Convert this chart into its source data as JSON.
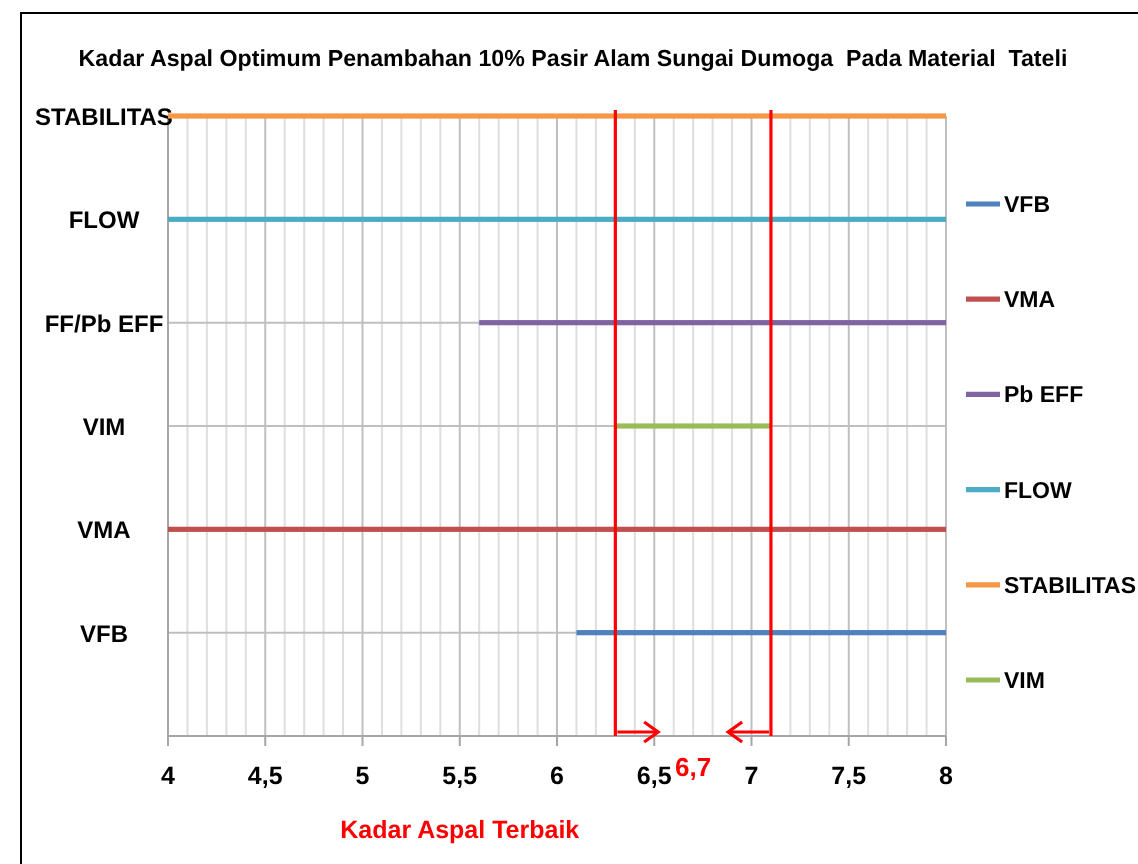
{
  "chart_data": {
    "type": "bar",
    "orientation": "horizontal",
    "title": "Kadar Aspal Optimum Penambahan 10% Pasir Alam Sungai Dumoga  Pada Material  Tateli",
    "categories": [
      "STABILITAS",
      "FLOW",
      "FF/Pb EFF",
      "VIM",
      "VMA",
      "VFB"
    ],
    "series": [
      {
        "name": "VFB",
        "color": "#4f81bd",
        "base": [
          null,
          null,
          null,
          null,
          null,
          6.1
        ],
        "values": [
          null,
          null,
          null,
          null,
          null,
          1.9
        ]
      },
      {
        "name": "VMA",
        "color": "#c0504d",
        "base": [
          null,
          null,
          null,
          null,
          4,
          null
        ],
        "values": [
          null,
          null,
          null,
          null,
          4,
          null
        ]
      },
      {
        "name": "Pb EFF",
        "color": "#8064a2",
        "base": [
          null,
          null,
          5.6,
          null,
          null,
          null
        ],
        "values": [
          null,
          null,
          2.4,
          null,
          null,
          null
        ]
      },
      {
        "name": "FLOW",
        "color": "#4bacc6",
        "base": [
          null,
          4,
          null,
          null,
          null,
          null
        ],
        "values": [
          null,
          4,
          null,
          null,
          null,
          null
        ]
      },
      {
        "name": "STABILITAS",
        "color": "#f79646",
        "base": [
          4,
          null,
          null,
          null,
          null,
          null
        ],
        "values": [
          4,
          null,
          null,
          null,
          null,
          null
        ]
      },
      {
        "name": "VIM",
        "color": "#9bbb59",
        "base": [
          null,
          null,
          null,
          6.3,
          null,
          null
        ],
        "values": [
          null,
          null,
          null,
          0.8,
          null,
          null
        ]
      }
    ],
    "xlim": [
      4,
      8
    ],
    "xticks": [
      4,
      {
        "value": 4.1,
        "label": null
      },
      {
        "value": 4.2,
        "label": null
      },
      {
        "value": 4.3,
        "label": null
      },
      {
        "value": 4.4,
        "label": null
      },
      {
        "value": 4.5,
        "label": "4,5"
      },
      {
        "value": 4.6,
        "label": null
      },
      {
        "value": 4.7,
        "label": null
      },
      {
        "value": 4.8,
        "label": null
      },
      {
        "value": 4.9,
        "label": null
      },
      5,
      {
        "value": 5.1,
        "label": null
      },
      {
        "value": 5.2,
        "label": null
      },
      {
        "value": 5.3,
        "label": null
      },
      {
        "value": 5.4,
        "label": null
      },
      {
        "value": 5.5,
        "label": "5,5"
      },
      {
        "value": 5.6,
        "label": null
      },
      {
        "value": 5.7,
        "label": null
      },
      {
        "value": 5.8,
        "label": null
      },
      {
        "value": 5.9,
        "label": null
      },
      6,
      {
        "value": 6.1,
        "label": null
      },
      {
        "value": 6.2,
        "label": null
      },
      {
        "value": 6.4,
        "label": null
      },
      {
        "value": 6.5,
        "label": "6,5"
      },
      {
        "value": 6.6,
        "label": null
      },
      {
        "value": 6.7,
        "label": null
      },
      {
        "value": 6.8,
        "label": null
      },
      {
        "value": 6.9,
        "label": null
      },
      7,
      {
        "value": 7.2,
        "label": null
      },
      {
        "value": 7.3,
        "label": null
      },
      {
        "value": 7.4,
        "label": null
      },
      {
        "value": 7.5,
        "label": "7,5"
      },
      {
        "value": 7.6,
        "label": null
      },
      {
        "value": 7.7,
        "label": null
      },
      {
        "value": 7.8,
        "label": null
      },
      {
        "value": 7.9,
        "label": null
      },
      8
    ],
    "grid": true,
    "legend": "right",
    "ref_lines": [
      {
        "axis": "x",
        "value": 6.3,
        "color": "#ff0000"
      },
      {
        "axis": "x",
        "value": 7.1,
        "color": "#ff0000"
      }
    ],
    "annotations": [
      "6,7",
      "Kadar Aspal Terbaik"
    ]
  }
}
